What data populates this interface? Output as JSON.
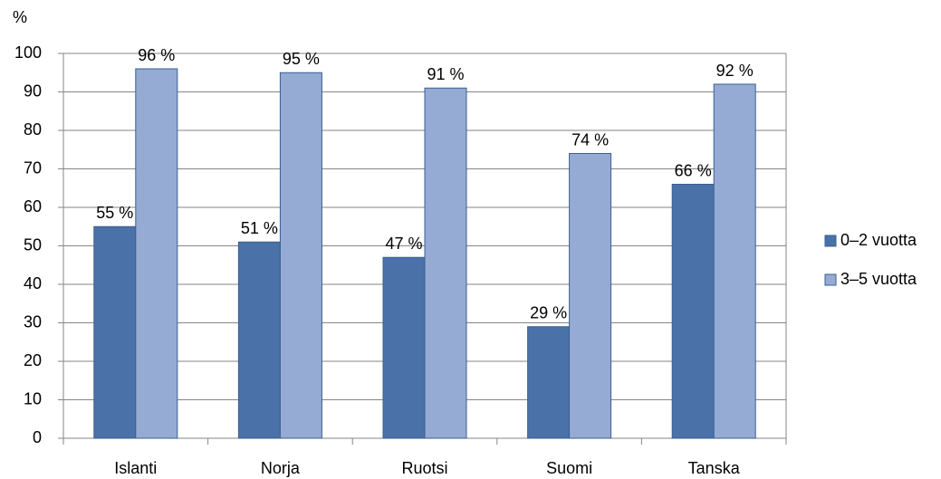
{
  "chart_data": {
    "type": "bar",
    "y_axis_label": "%",
    "categories": [
      "Islanti",
      "Norja",
      "Ruotsi",
      "Suomi",
      "Tanska"
    ],
    "series": [
      {
        "name": "0–2 vuotta",
        "color": "#4a72a8",
        "values": [
          55,
          51,
          47,
          29,
          66
        ],
        "value_labels": [
          "55 %",
          "51 %",
          "47 %",
          "29 %",
          "66 %"
        ]
      },
      {
        "name": "3–5 vuotta",
        "color": "#95abd4",
        "values": [
          96,
          95,
          91,
          74,
          92
        ],
        "value_labels": [
          "96 %",
          "95 %",
          "91 %",
          "74 %",
          "92 %"
        ]
      }
    ],
    "ylim": [
      0,
      100
    ],
    "yticks": [
      0,
      10,
      20,
      30,
      40,
      50,
      60,
      70,
      80,
      90,
      100
    ],
    "grid": true,
    "legend": "right"
  }
}
